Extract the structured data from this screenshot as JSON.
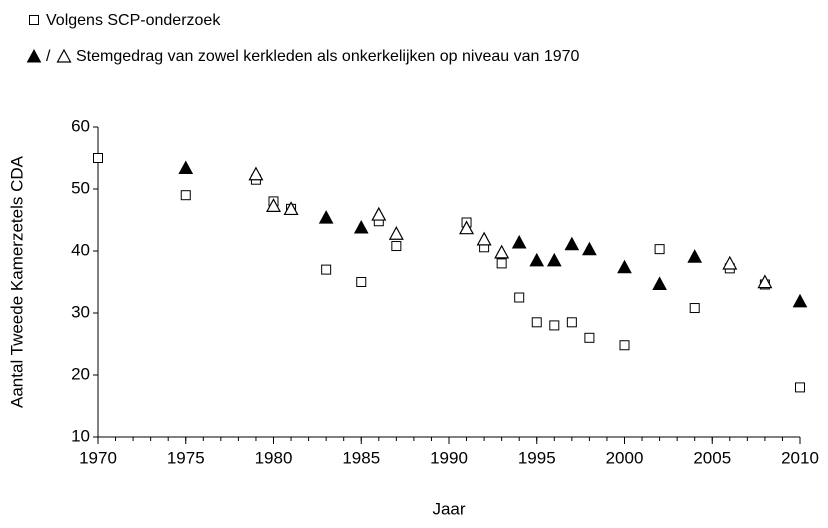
{
  "chart_data": {
    "type": "scatter",
    "x_label": "Jaar",
    "y_label": "Aantal Tweede Kamerzetels CDA",
    "legend_separator": "/",
    "xlim": [
      1970,
      2010
    ],
    "xticks": [
      1970,
      1975,
      1980,
      1985,
      1990,
      1995,
      2000,
      2005,
      2010
    ],
    "ylim": [
      10,
      60
    ],
    "yticks": [
      10,
      20,
      30,
      40,
      50,
      60
    ],
    "grid": false,
    "series": [
      {
        "name": "Volgens SCP-onderzoek",
        "marker": "square-open",
        "color": "#000000",
        "x": [
          1970,
          1975,
          1979,
          1980,
          1981,
          1983,
          1985,
          1986,
          1987,
          1991,
          1992,
          1993,
          1994,
          1995,
          1996,
          1997,
          1998,
          2000,
          2002,
          2004,
          2006,
          2008,
          2010
        ],
        "values": [
          55,
          49,
          51.5,
          48,
          46.8,
          37,
          35,
          44.8,
          40.8,
          44.6,
          40.6,
          38,
          32.5,
          28.5,
          28,
          28.5,
          26,
          24.8,
          40.3,
          30.8,
          37.2,
          34.6,
          18
        ]
      },
      {
        "name": "Stemgedrag van zowel kerkleden als onkerkelijken op niveau van 1970",
        "marker": "triangle-filled",
        "color": "#000000",
        "x": [
          1975,
          1983,
          1985,
          1994,
          1995,
          1996,
          1997,
          1998,
          2000,
          2002,
          2004,
          2010
        ],
        "values": [
          53.3,
          45.3,
          43.7,
          41.3,
          38.4,
          38.4,
          41,
          40.2,
          37.3,
          34.6,
          39,
          31.8
        ]
      },
      {
        "marker": "triangle-open",
        "color": "#000000",
        "x": [
          1979,
          1980,
          1981,
          1986,
          1987,
          1991,
          1992,
          1993,
          2006,
          2008
        ],
        "values": [
          52.3,
          47.2,
          46.7,
          45.8,
          42.7,
          43.6,
          41.8,
          39.7,
          37.9,
          34.9
        ]
      }
    ]
  }
}
